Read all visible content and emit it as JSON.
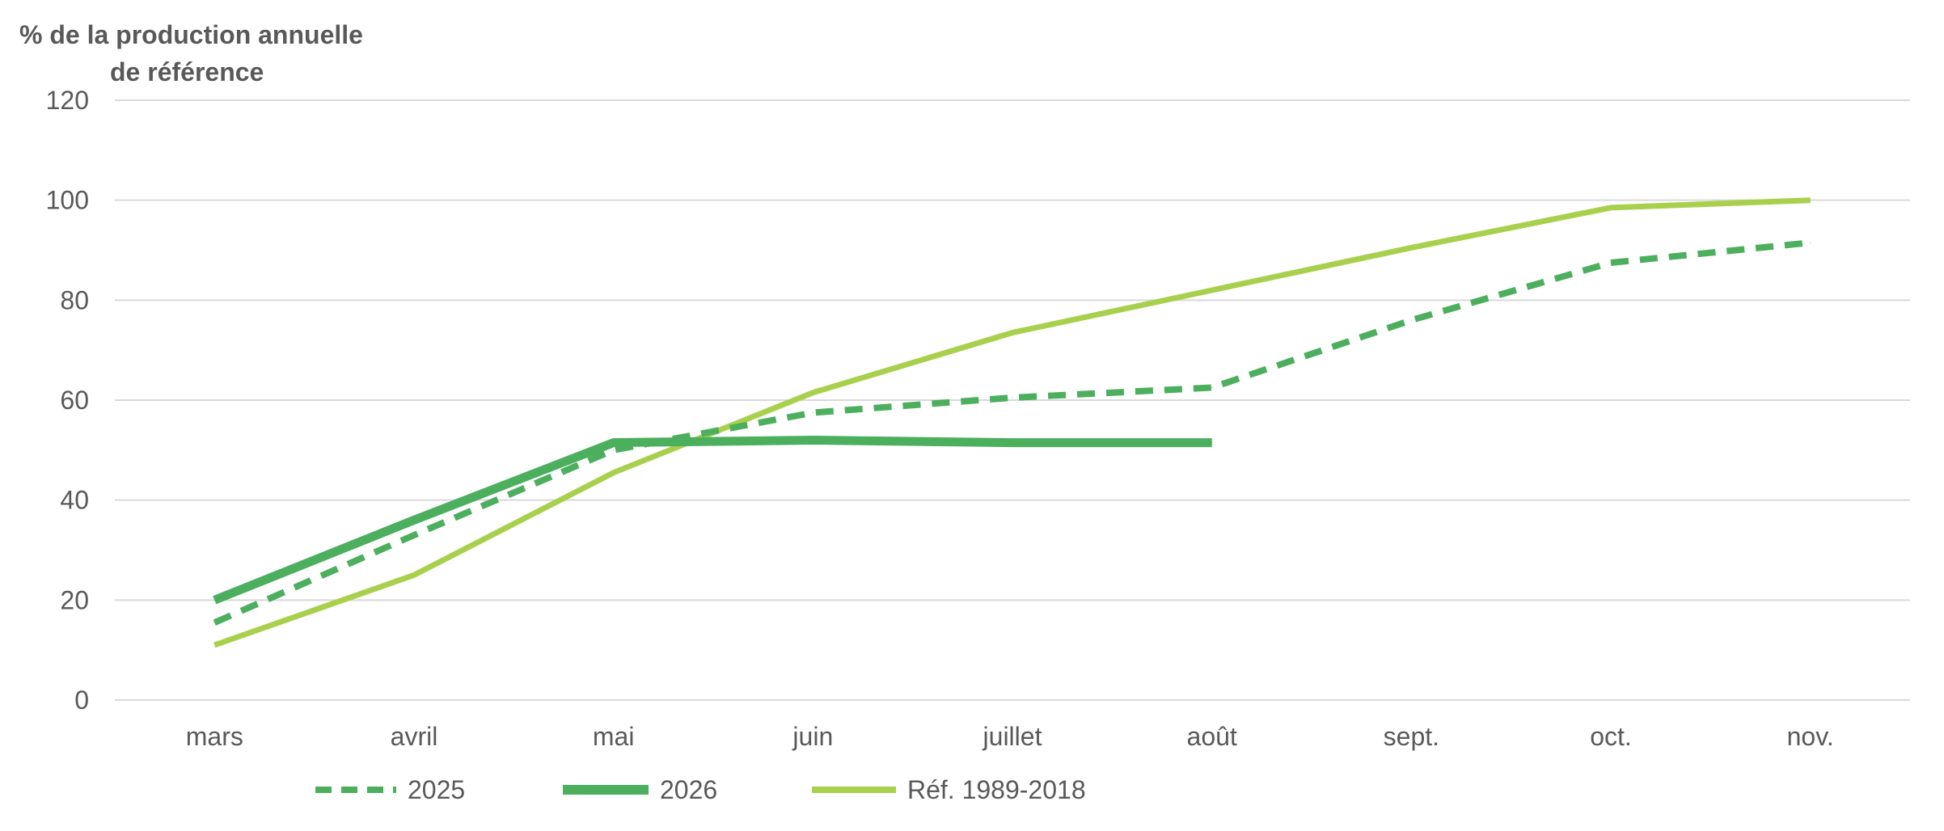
{
  "chart_data": {
    "type": "line",
    "ylabel_line1": "% de  la production  annuelle",
    "ylabel_line2": "de référence",
    "categories": [
      "mars",
      "avril",
      "mai",
      "juin",
      "juillet",
      "août",
      "sept.",
      "oct.",
      "nov."
    ],
    "yticks": [
      "0",
      "20",
      "40",
      "60",
      "80",
      "100",
      "120"
    ],
    "ylim": [
      0,
      120
    ],
    "grid": true,
    "legend_position": "bottom",
    "series": [
      {
        "name": "2025",
        "style": "dashed",
        "color": "#4caf5e",
        "values": [
          15.5,
          33,
          50,
          57.5,
          60.5,
          62.5,
          76,
          87.5,
          91.5
        ]
      },
      {
        "name": "2026",
        "style": "solid-thick",
        "color": "#4caf5e",
        "values": [
          20,
          36,
          51.5,
          52,
          51.5,
          51.5,
          null,
          null,
          null
        ]
      },
      {
        "name": "Réf. 1989-2018",
        "style": "solid",
        "color": "#a9d04c",
        "values": [
          11,
          25,
          45.5,
          61.5,
          73.5,
          82,
          90.5,
          98.5,
          100
        ]
      }
    ]
  }
}
